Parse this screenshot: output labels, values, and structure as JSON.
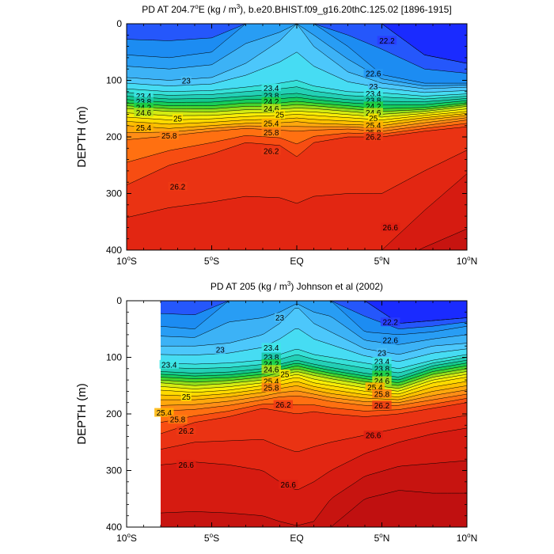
{
  "figure": {
    "panels": [
      {
        "title_main": "PD AT 204.7",
        "title_deg": "o",
        "title_rest": "E (kg / m",
        "title_exp": "3",
        "title_tail": "), b.e20.BHIST.f09_g16.20thC.125.02 [1896-1915]"
      },
      {
        "title_main": "PD AT 205 (kg / m",
        "title_deg": "",
        "title_rest": "",
        "title_exp": "3",
        "title_tail": ") Johnson et al (2002)"
      }
    ],
    "x_ticks": [
      {
        "num": "10",
        "sup": "o",
        "hem": "S"
      },
      {
        "num": "5",
        "sup": "o",
        "hem": "S"
      },
      {
        "num": "EQ",
        "sup": "",
        "hem": ""
      },
      {
        "num": "5",
        "sup": "o",
        "hem": "N"
      },
      {
        "num": "10",
        "sup": "o",
        "hem": "N"
      }
    ],
    "y_ticks": [
      "0",
      "100",
      "200",
      "300",
      "400"
    ],
    "y_label": "DEPTH (m)"
  },
  "chart_data": [
    {
      "type": "heatmap",
      "title": "PD AT 204.7°E (kg / m³), b.e20.BHIST.f09_g16.20thC.125.02 [1896-1915]",
      "xlabel": "",
      "ylabel": "DEPTH (m)",
      "xlim": [
        -10,
        10
      ],
      "ylim": [
        400,
        0
      ],
      "x_tick_values": [
        -10,
        -5,
        0,
        5,
        10
      ],
      "y_tick_values": [
        0,
        100,
        200,
        300,
        400
      ],
      "contour_interval": 0.2,
      "color_range": [
        22.0,
        27.0
      ],
      "data_x_start": -10,
      "anchors": {
        "x": [
          -10,
          -7.5,
          -5,
          -3,
          -1,
          0,
          1,
          3,
          5,
          7.5,
          10
        ],
        "isopycnals": [
          {
            "value": 22.2,
            "depth": [
              0,
              0,
              0,
              0,
              0,
              0,
              0,
              0,
              0,
              55,
              70
            ]
          },
          {
            "value": 22.6,
            "depth": [
              55,
              60,
              50,
              0,
              0,
              0,
              0,
              40,
              90,
              105,
              105
            ]
          },
          {
            "value": 23.0,
            "depth": [
              95,
              100,
              95,
              70,
              30,
              0,
              40,
              85,
              105,
              115,
              112
            ]
          },
          {
            "value": 23.4,
            "depth": [
              115,
              120,
              118,
              112,
              105,
              100,
              110,
              120,
              122,
              128,
              124
            ]
          },
          {
            "value": 23.8,
            "depth": [
              128,
              133,
              132,
              128,
              125,
              123,
              128,
              134,
              137,
              138,
              132
            ]
          },
          {
            "value": 24.2,
            "depth": [
              140,
              145,
              145,
              140,
              140,
              137,
              140,
              145,
              150,
              148,
              140
            ]
          },
          {
            "value": 24.6,
            "depth": [
              150,
              155,
              156,
              152,
              151,
              149,
              150,
              155,
              160,
              155,
              146
            ]
          },
          {
            "value": 25.0,
            "depth": [
              165,
              170,
              168,
              164,
              162,
              160,
              162,
              166,
              170,
              162,
              155
            ]
          },
          {
            "value": 25.4,
            "depth": [
              180,
              185,
              180,
              176,
              175,
              173,
              176,
              178,
              180,
              170,
              162
            ]
          },
          {
            "value": 25.8,
            "depth": [
              205,
              198,
              190,
              185,
              188,
              190,
              188,
              186,
              190,
              180,
              170
            ]
          },
          {
            "value": 26.2,
            "depth": [
              285,
              250,
              230,
              210,
              215,
              235,
              210,
              200,
              200,
              190,
              182
            ]
          },
          {
            "value": 26.6,
            "depth": [
              400,
              400,
              400,
              400,
              400,
              400,
              400,
              400,
              400,
              330,
              265
            ]
          },
          {
            "value": 27.0,
            "depth": [
              460,
              460,
              460,
              460,
              460,
              460,
              460,
              460,
              460,
              460,
              460
            ]
          }
        ]
      },
      "contour_labels": [
        {
          "text": "22.2",
          "x": 5.3,
          "y": 30
        },
        {
          "text": "22.6",
          "x": 4.5,
          "y": 88
        },
        {
          "text": "23",
          "x": -6.5,
          "y": 101
        },
        {
          "text": "23",
          "x": 4.5,
          "y": 111
        },
        {
          "text": "23.4",
          "x": -9,
          "y": 128
        },
        {
          "text": "23.4",
          "x": -1.5,
          "y": 114
        },
        {
          "text": "23.4",
          "x": 4.5,
          "y": 124
        },
        {
          "text": "23.8",
          "x": -9,
          "y": 138
        },
        {
          "text": "23.8",
          "x": -1.5,
          "y": 127
        },
        {
          "text": "23.8",
          "x": 4.5,
          "y": 136
        },
        {
          "text": "24.2",
          "x": -9,
          "y": 148
        },
        {
          "text": "24.2",
          "x": -1.5,
          "y": 138
        },
        {
          "text": "24.2",
          "x": 4.5,
          "y": 146
        },
        {
          "text": "24.6",
          "x": -9,
          "y": 157
        },
        {
          "text": "24.6",
          "x": -1.5,
          "y": 150
        },
        {
          "text": "24.6",
          "x": 4.5,
          "y": 157
        },
        {
          "text": "25",
          "x": -7,
          "y": 168
        },
        {
          "text": "25",
          "x": -1,
          "y": 161
        },
        {
          "text": "25",
          "x": 4.5,
          "y": 167
        },
        {
          "text": "25.4",
          "x": -9,
          "y": 184
        },
        {
          "text": "25.4",
          "x": -1.5,
          "y": 176
        },
        {
          "text": "25.4",
          "x": 4.5,
          "y": 180
        },
        {
          "text": "25.8",
          "x": -7.5,
          "y": 198
        },
        {
          "text": "25.8",
          "x": -1.5,
          "y": 192
        },
        {
          "text": "25.8",
          "x": 4.5,
          "y": 192
        },
        {
          "text": "26.2",
          "x": -1.5,
          "y": 225
        },
        {
          "text": "26.2",
          "x": 4.5,
          "y": 200
        },
        {
          "text": "26.2",
          "x": -7,
          "y": 288
        },
        {
          "text": "26.6",
          "x": 5.5,
          "y": 360
        }
      ]
    },
    {
      "type": "heatmap",
      "title": "PD AT 205 (kg / m³) Johnson et al (2002)",
      "xlabel": "",
      "ylabel": "DEPTH (m)",
      "xlim": [
        -10,
        10
      ],
      "ylim": [
        400,
        0
      ],
      "x_tick_values": [
        -10,
        -5,
        0,
        5,
        10
      ],
      "y_tick_values": [
        0,
        100,
        200,
        300,
        400
      ],
      "contour_interval": 0.2,
      "color_range": [
        22.0,
        27.0
      ],
      "data_x_start": -8,
      "anchors": {
        "x": [
          -8,
          -6,
          -4,
          -2,
          -1,
          0,
          1,
          2,
          4,
          6,
          8,
          10
        ],
        "isopycnals": [
          {
            "value": 22.2,
            "depth": [
              0,
              0,
              0,
              0,
              0,
              0,
              0,
              0,
              0,
              40,
              35,
              30
            ]
          },
          {
            "value": 22.6,
            "depth": [
              45,
              50,
              0,
              0,
              0,
              0,
              0,
              0,
              55,
              60,
              55,
              45
            ]
          },
          {
            "value": 23.0,
            "depth": [
              80,
              80,
              75,
              60,
              40,
              10,
              40,
              55,
              85,
              95,
              80,
              75
            ]
          },
          {
            "value": 23.4,
            "depth": [
              110,
              112,
              110,
              105,
              95,
              85,
              95,
              100,
              110,
              120,
              105,
              95
            ]
          },
          {
            "value": 23.8,
            "depth": [
              125,
              128,
              126,
              120,
              112,
              105,
              112,
              118,
              128,
              135,
              115,
              105
            ]
          },
          {
            "value": 24.2,
            "depth": [
              135,
              138,
              136,
              130,
              122,
              115,
              122,
              128,
              138,
              145,
              125,
              115
            ]
          },
          {
            "value": 24.6,
            "depth": [
              145,
              150,
              146,
              140,
              132,
              125,
              132,
              138,
              148,
              155,
              135,
              125
            ]
          },
          {
            "value": 25.0,
            "depth": [
              158,
              162,
              158,
              150,
              142,
              135,
              145,
              150,
              160,
              165,
              145,
              135
            ]
          },
          {
            "value": 25.4,
            "depth": [
              175,
              175,
              170,
              162,
              155,
              150,
              158,
              164,
              172,
              175,
              160,
              150
            ]
          },
          {
            "value": 25.8,
            "depth": [
              195,
              192,
              185,
              175,
              170,
              168,
              172,
              178,
              185,
              185,
              175,
              165
            ]
          },
          {
            "value": 26.2,
            "depth": [
              235,
              215,
              205,
              190,
              195,
              200,
              196,
              200,
              205,
              200,
              190,
              180
            ]
          },
          {
            "value": 26.6,
            "depth": [
              290,
              285,
              290,
              300,
              320,
              335,
              320,
              300,
              270,
              250,
              235,
              225
            ]
          },
          {
            "value": 27.0,
            "depth": [
              460,
              460,
              460,
              460,
              460,
              460,
              460,
              400,
              350,
              335,
              340,
              340
            ]
          }
        ]
      },
      "contour_labels": [
        {
          "text": "23",
          "x": -1,
          "y": 30
        },
        {
          "text": "22.2",
          "x": 5.5,
          "y": 38
        },
        {
          "text": "22.6",
          "x": 5.5,
          "y": 70
        },
        {
          "text": "23",
          "x": -4.5,
          "y": 87
        },
        {
          "text": "23",
          "x": 5,
          "y": 92
        },
        {
          "text": "23.4",
          "x": -7.5,
          "y": 113
        },
        {
          "text": "23.4",
          "x": -1.5,
          "y": 83
        },
        {
          "text": "23.4",
          "x": 5,
          "y": 108
        },
        {
          "text": "23.8",
          "x": -1.5,
          "y": 100
        },
        {
          "text": "23.8",
          "x": 5,
          "y": 120
        },
        {
          "text": "24.2",
          "x": -1.5,
          "y": 112
        },
        {
          "text": "24.2",
          "x": 5,
          "y": 132
        },
        {
          "text": "24.6",
          "x": -1.5,
          "y": 122
        },
        {
          "text": "24.6",
          "x": 5,
          "y": 142
        },
        {
          "text": "25",
          "x": -0.7,
          "y": 130
        },
        {
          "text": "25",
          "x": -6.5,
          "y": 170
        },
        {
          "text": "25.4",
          "x": -1.5,
          "y": 143
        },
        {
          "text": "25.4",
          "x": 4.6,
          "y": 153
        },
        {
          "text": "25.4",
          "x": -7.8,
          "y": 198
        },
        {
          "text": "25.8",
          "x": -1.5,
          "y": 154
        },
        {
          "text": "25.8",
          "x": 5,
          "y": 165
        },
        {
          "text": "25.8",
          "x": -7,
          "y": 210
        },
        {
          "text": "26.2",
          "x": -0.8,
          "y": 184
        },
        {
          "text": "26.2",
          "x": 5,
          "y": 185
        },
        {
          "text": "26.2",
          "x": -6.5,
          "y": 230
        },
        {
          "text": "26.6",
          "x": 4.5,
          "y": 238
        },
        {
          "text": "26.6",
          "x": -6.5,
          "y": 290
        },
        {
          "text": "26.6",
          "x": -0.5,
          "y": 325
        }
      ]
    }
  ]
}
